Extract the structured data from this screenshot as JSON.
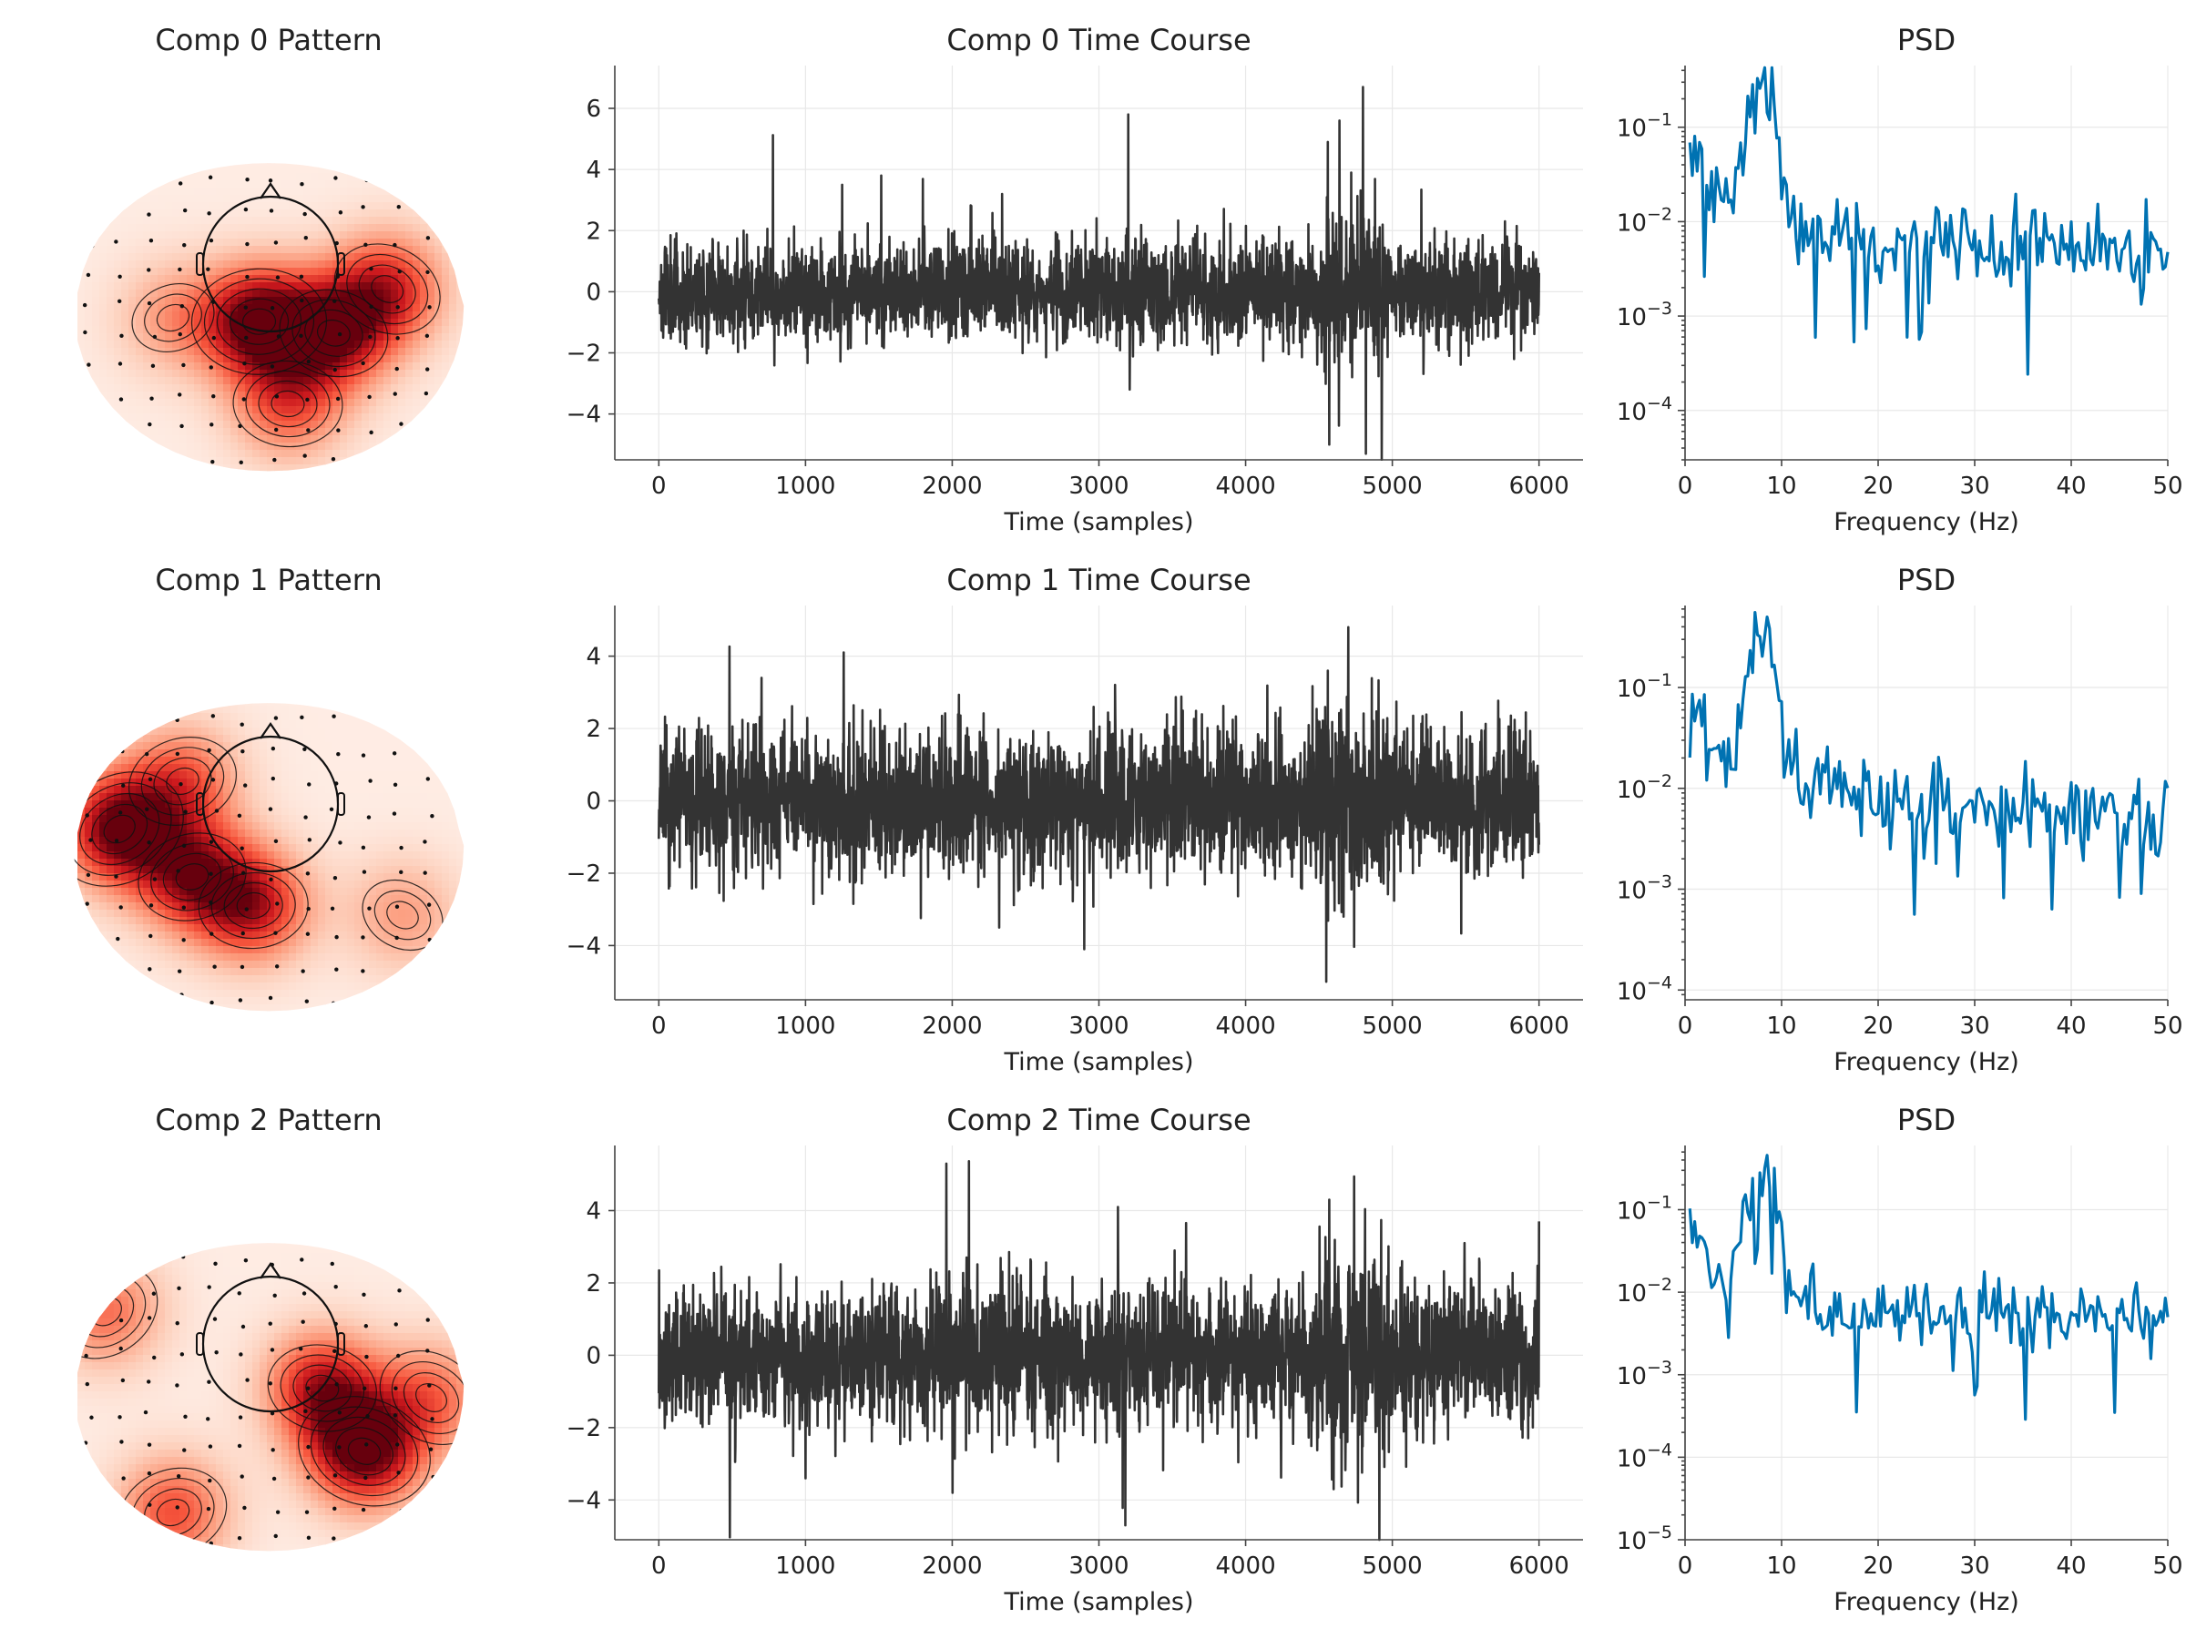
{
  "theme": {
    "timecourse_color": "#333333",
    "psd_color": "#0072b2",
    "topo_colormap": [
      "#fff5f0",
      "#fdd0bc",
      "#fc9b7c",
      "#f6553c",
      "#cb181d",
      "#67000d"
    ]
  },
  "chart_data": [
    {
      "type": "heatmap",
      "subtype": "topomap",
      "title": "Comp 0 Pattern",
      "hotspots": [
        {
          "x": -0.05,
          "y": -0.12,
          "strength": 1.0
        },
        {
          "x": 0.34,
          "y": -0.18,
          "strength": 0.82
        },
        {
          "x": 0.62,
          "y": 0.05,
          "strength": 0.72
        },
        {
          "x": 0.1,
          "y": -0.55,
          "strength": 0.55
        },
        {
          "x": -0.5,
          "y": -0.1,
          "strength": 0.35
        }
      ]
    },
    {
      "type": "line",
      "title": "Comp 0 Time Course",
      "xlabel": "Time (samples)",
      "xlim": [
        -300,
        6300
      ],
      "ylim": [
        -5.5,
        7.4
      ],
      "xticks": [
        0,
        1000,
        2000,
        3000,
        4000,
        5000,
        6000
      ],
      "yticks": [
        -4,
        -2,
        0,
        2,
        4,
        6
      ],
      "n_samples": 6000,
      "grid": true,
      "series": [
        {
          "noise_sd": 0.8,
          "seed": 11,
          "spikes": [
            {
              "x": 3200,
              "y": 5.8
            },
            {
              "x": 3210,
              "y": -3.2
            },
            {
              "x": 4560,
              "y": 4.9
            },
            {
              "x": 4570,
              "y": -5.0
            },
            {
              "x": 4800,
              "y": 6.7
            },
            {
              "x": 4820,
              "y": -5.3
            },
            {
              "x": 4640,
              "y": 5.6
            },
            {
              "x": 4720,
              "y": 3.9
            },
            {
              "x": 1250,
              "y": 3.5
            },
            {
              "x": 2340,
              "y": 3.2
            }
          ]
        }
      ]
    },
    {
      "type": "line",
      "title": "PSD",
      "xlabel": "Frequency (Hz)",
      "log_y": true,
      "xlim": [
        0,
        50
      ],
      "ylim": [
        3e-05,
        0.45
      ],
      "xticks": [
        0,
        10,
        20,
        30,
        40,
        50
      ],
      "yticks": [
        0.0001,
        0.001,
        0.01,
        0.1
      ],
      "ytick_labels": [
        {
          "base": "10",
          "exp": "−4"
        },
        {
          "base": "10",
          "exp": "−3"
        },
        {
          "base": "10",
          "exp": "−2"
        },
        {
          "base": "10",
          "exp": "−1"
        }
      ],
      "grid": true,
      "series": [
        {
          "base": 0.05,
          "decay": 1.0,
          "alpha_peak": 0.24,
          "alpha_freq": 8,
          "noise": 0.5,
          "seed": 21
        }
      ]
    },
    {
      "type": "heatmap",
      "subtype": "topomap",
      "title": "Comp 1 Pattern",
      "hotspots": [
        {
          "x": -0.78,
          "y": 0.05,
          "strength": 1.0
        },
        {
          "x": -0.4,
          "y": -0.2,
          "strength": 0.75
        },
        {
          "x": -0.08,
          "y": -0.35,
          "strength": 0.78
        },
        {
          "x": -0.45,
          "y": 0.3,
          "strength": 0.55
        },
        {
          "x": 0.7,
          "y": -0.4,
          "strength": 0.35
        }
      ]
    },
    {
      "type": "line",
      "title": "Comp 1 Time Course",
      "xlabel": "Time (samples)",
      "xlim": [
        -300,
        6300
      ],
      "ylim": [
        -5.5,
        5.4
      ],
      "xticks": [
        0,
        1000,
        2000,
        3000,
        4000,
        5000,
        6000
      ],
      "yticks": [
        -4,
        -2,
        0,
        2,
        4
      ],
      "n_samples": 6000,
      "grid": true,
      "series": [
        {
          "noise_sd": 0.95,
          "seed": 23,
          "spikes": [
            {
              "x": 1260,
              "y": 4.1
            },
            {
              "x": 2900,
              "y": -4.1
            },
            {
              "x": 4550,
              "y": -5.0
            },
            {
              "x": 4700,
              "y": 4.8
            },
            {
              "x": 4560,
              "y": 3.6
            },
            {
              "x": 2320,
              "y": -3.5
            },
            {
              "x": 700,
              "y": 3.4
            }
          ]
        }
      ]
    },
    {
      "type": "line",
      "title": "PSD",
      "xlabel": "Frequency (Hz)",
      "log_y": true,
      "xlim": [
        0,
        50
      ],
      "ylim": [
        8e-05,
        0.65
      ],
      "xticks": [
        0,
        10,
        20,
        30,
        40,
        50
      ],
      "yticks": [
        0.0001,
        0.001,
        0.01,
        0.1
      ],
      "ytick_labels": [
        {
          "base": "10",
          "exp": "−4"
        },
        {
          "base": "10",
          "exp": "−3"
        },
        {
          "base": "10",
          "exp": "−2"
        },
        {
          "base": "10",
          "exp": "−1"
        }
      ],
      "grid": true,
      "series": [
        {
          "base": 0.06,
          "decay": 0.9,
          "alpha_peak": 0.35,
          "alpha_freq": 8,
          "noise": 0.5,
          "seed": 31
        }
      ]
    },
    {
      "type": "heatmap",
      "subtype": "topomap",
      "title": "Comp 2 Pattern",
      "hotspots": [
        {
          "x": 0.5,
          "y": -0.38,
          "strength": 1.0
        },
        {
          "x": 0.28,
          "y": -0.05,
          "strength": 0.8
        },
        {
          "x": 0.85,
          "y": -0.1,
          "strength": 0.5
        },
        {
          "x": -0.85,
          "y": 0.35,
          "strength": 0.5
        },
        {
          "x": -0.5,
          "y": -0.7,
          "strength": 0.6
        }
      ]
    },
    {
      "type": "line",
      "title": "Comp 2 Time Course",
      "xlabel": "Time (samples)",
      "xlim": [
        -300,
        6300
      ],
      "ylim": [
        -5.1,
        5.8
      ],
      "xticks": [
        0,
        1000,
        2000,
        3000,
        4000,
        5000,
        6000
      ],
      "yticks": [
        -4,
        -2,
        0,
        2,
        4
      ],
      "n_samples": 6000,
      "grid": true,
      "series": [
        {
          "noise_sd": 0.95,
          "seed": 37,
          "spikes": [
            {
              "x": 1960,
              "y": 5.3
            },
            {
              "x": 3180,
              "y": -4.7
            },
            {
              "x": 4570,
              "y": 4.3
            },
            {
              "x": 4600,
              "y": -3.7
            },
            {
              "x": 6000,
              "y": 3.7
            },
            {
              "x": 1000,
              "y": -3.4
            },
            {
              "x": 3130,
              "y": 4.1
            }
          ]
        }
      ]
    },
    {
      "type": "line",
      "title": "PSD",
      "xlabel": "Frequency (Hz)",
      "log_y": true,
      "xlim": [
        0,
        50
      ],
      "ylim": [
        1e-05,
        0.6
      ],
      "xticks": [
        0,
        10,
        20,
        30,
        40,
        50
      ],
      "yticks": [
        1e-05,
        0.0001,
        0.001,
        0.01,
        0.1
      ],
      "ytick_labels": [
        {
          "base": "10",
          "exp": "−5"
        },
        {
          "base": "10",
          "exp": "−4"
        },
        {
          "base": "10",
          "exp": "−3"
        },
        {
          "base": "10",
          "exp": "−2"
        },
        {
          "base": "10",
          "exp": "−1"
        }
      ],
      "grid": true,
      "series": [
        {
          "base": 0.05,
          "decay": 1.0,
          "alpha_peak": 0.3,
          "alpha_freq": 8,
          "noise": 0.45,
          "seed": 41
        }
      ]
    }
  ]
}
